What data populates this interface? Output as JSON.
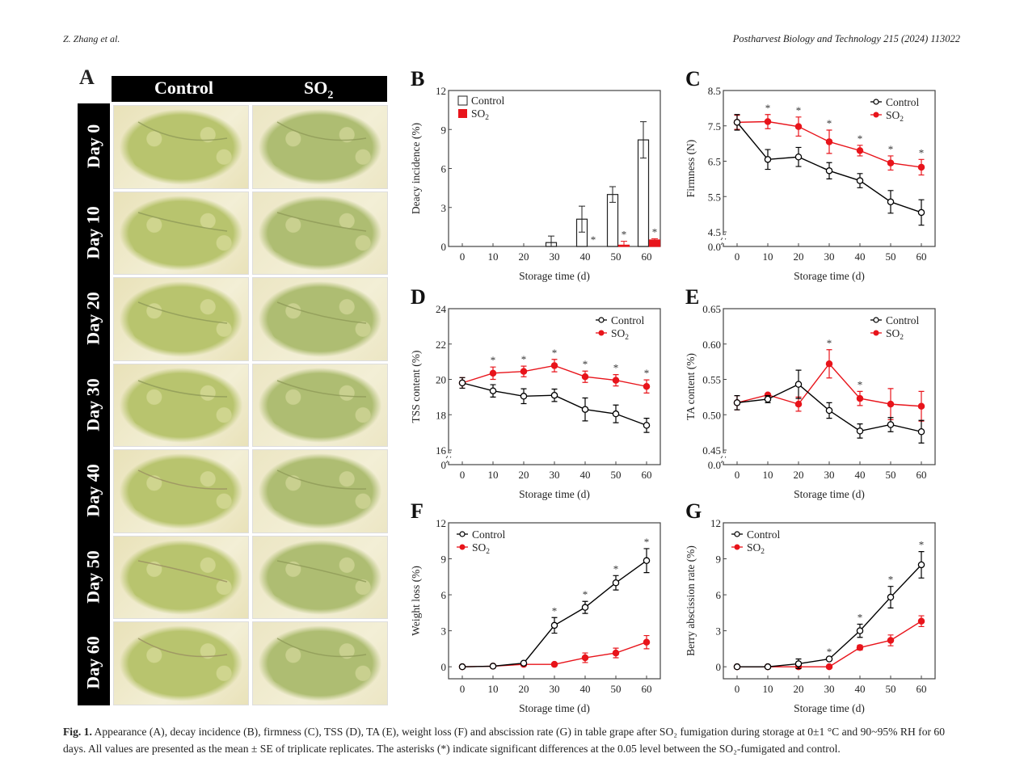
{
  "header": {
    "authors": "Z. Zhang et al.",
    "journal": "Postharvest Biology and Technology 215 (2024) 113022"
  },
  "panelA": {
    "letter": "A",
    "columns": [
      "Control",
      "SO2"
    ],
    "rows": [
      "Day 0",
      "Day 10",
      "Day 20",
      "Day 30",
      "Day 40",
      "Day 50",
      "Day 60"
    ],
    "photo_description": "Photographs of table grape clusters in trays"
  },
  "caption": {
    "label": "Fig. 1.",
    "text": "Appearance (A), decay incidence (B), firmness (C), TSS (D), TA (E), weight loss (F) and abscission rate (G) in table grape after SO₂ fumigation during storage at 0±1 °C and 90~95% RH for 60 days. All values are presented as the mean ± SE of triplicate replicates. The asterisks (*) indicate significant differences at the 0.05 level between the SO₂-fumigated and control."
  },
  "colors": {
    "control": "#000000",
    "so2": "#e8141b"
  },
  "chart_data": [
    {
      "id": "B",
      "type": "bar",
      "letter": "B",
      "title": "",
      "xlabel": "Storage time (d)",
      "ylabel": "Deacy incidence (%)",
      "categories": [
        0,
        10,
        20,
        30,
        40,
        50,
        60
      ],
      "ylim": [
        0,
        12
      ],
      "yticks": [
        0,
        3,
        6,
        9,
        12
      ],
      "legend": "top-left",
      "series": [
        {
          "name": "Control",
          "values": [
            0,
            0,
            0,
            0.3,
            2.1,
            4.0,
            8.2
          ],
          "err": [
            0,
            0,
            0,
            0.5,
            1.0,
            0.6,
            1.4
          ]
        },
        {
          "name": "SO2",
          "values": [
            0,
            0,
            0,
            0,
            0,
            0.1,
            0.5
          ],
          "err": [
            0,
            0,
            0,
            0,
            0,
            0.3,
            0.1
          ]
        }
      ],
      "significant": [
        40,
        50,
        60
      ]
    },
    {
      "id": "C",
      "type": "line",
      "letter": "C",
      "xlabel": "Storage time (d)",
      "ylabel": "Firmness (N)",
      "x": [
        0,
        10,
        20,
        30,
        40,
        50,
        60
      ],
      "ylim": [
        4.5,
        8.5
      ],
      "yticks": [
        "4.5",
        "5.5",
        "6.5",
        "7.5",
        "8.5"
      ],
      "axis_break": "0.0",
      "legend": "top-right",
      "series": [
        {
          "name": "Control",
          "values": [
            7.6,
            6.55,
            6.62,
            6.23,
            5.95,
            5.35,
            5.05
          ],
          "err": [
            0.22,
            0.28,
            0.27,
            0.23,
            0.2,
            0.32,
            0.36
          ]
        },
        {
          "name": "SO2",
          "values": [
            7.6,
            7.62,
            7.48,
            7.05,
            6.8,
            6.45,
            6.33
          ],
          "err": [
            0.2,
            0.2,
            0.27,
            0.33,
            0.15,
            0.2,
            0.22
          ]
        }
      ],
      "significant": [
        10,
        20,
        30,
        40,
        50,
        60
      ]
    },
    {
      "id": "D",
      "type": "line",
      "letter": "D",
      "xlabel": "Storage time (d)",
      "ylabel": "TSS content (%)",
      "x": [
        0,
        10,
        20,
        30,
        40,
        50,
        60
      ],
      "ylim": [
        16,
        24
      ],
      "yticks": [
        "16",
        "18",
        "20",
        "22",
        "24"
      ],
      "axis_break": "0",
      "legend": "top-right",
      "series": [
        {
          "name": "Control",
          "values": [
            19.8,
            19.35,
            19.05,
            19.1,
            18.3,
            18.05,
            17.4
          ],
          "err": [
            0.3,
            0.35,
            0.42,
            0.35,
            0.65,
            0.5,
            0.4
          ]
        },
        {
          "name": "SO2",
          "values": [
            19.8,
            20.35,
            20.45,
            20.78,
            20.15,
            19.95,
            19.6
          ],
          "err": [
            0.3,
            0.35,
            0.3,
            0.35,
            0.32,
            0.32,
            0.37
          ]
        }
      ],
      "significant": [
        10,
        20,
        30,
        40,
        50,
        60
      ]
    },
    {
      "id": "E",
      "type": "line",
      "letter": "E",
      "xlabel": "Storage time (d)",
      "ylabel": "TA content (%)",
      "x": [
        0,
        10,
        20,
        30,
        40,
        50,
        60
      ],
      "ylim": [
        0.45,
        0.65
      ],
      "yticks": [
        "0.45",
        "0.50",
        "0.55",
        "0.60",
        "0.65"
      ],
      "axis_break": "0.0",
      "legend": "top-right",
      "series": [
        {
          "name": "Control",
          "values": [
            0.517,
            0.522,
            0.543,
            0.506,
            0.477,
            0.486,
            0.476
          ],
          "err": [
            0.01,
            0.005,
            0.02,
            0.011,
            0.01,
            0.01,
            0.016
          ]
        },
        {
          "name": "SO2",
          "values": [
            0.517,
            0.528,
            0.515,
            0.572,
            0.523,
            0.515,
            0.512
          ],
          "err": [
            0.01,
            0.002,
            0.01,
            0.02,
            0.01,
            0.022,
            0.021
          ]
        }
      ],
      "significant": [
        30,
        40
      ]
    },
    {
      "id": "F",
      "type": "line",
      "letter": "F",
      "xlabel": "Storage time (d)",
      "ylabel": "Weight loss (%)",
      "x": [
        0,
        10,
        20,
        30,
        40,
        50,
        60
      ],
      "ylim": [
        -1,
        12
      ],
      "yticks": [
        "0",
        "3",
        "6",
        "9",
        "12"
      ],
      "legend": "top-left",
      "series": [
        {
          "name": "Control",
          "values": [
            0,
            0.05,
            0.3,
            3.45,
            4.95,
            7.0,
            8.85
          ],
          "err": [
            0,
            0,
            0.05,
            0.65,
            0.5,
            0.6,
            1.0
          ]
        },
        {
          "name": "SO2",
          "values": [
            0,
            0.05,
            0.2,
            0.2,
            0.75,
            1.15,
            2.05
          ],
          "err": [
            0,
            0,
            0,
            0.05,
            0.4,
            0.4,
            0.55
          ]
        }
      ],
      "significant": [
        30,
        40,
        50,
        60
      ]
    },
    {
      "id": "G",
      "type": "line",
      "letter": "G",
      "xlabel": "Storage time (d)",
      "ylabel": "Berry abscission rate (%)",
      "x": [
        0,
        10,
        20,
        30,
        40,
        50,
        60
      ],
      "ylim": [
        -1,
        12
      ],
      "yticks": [
        "0",
        "3",
        "6",
        "9",
        "12"
      ],
      "legend": "top-left",
      "series": [
        {
          "name": "Control",
          "values": [
            0,
            0,
            0.25,
            0.65,
            3.0,
            5.8,
            8.5
          ],
          "err": [
            0,
            0,
            0.4,
            0.05,
            0.55,
            0.9,
            1.1
          ]
        },
        {
          "name": "SO2",
          "values": [
            0,
            0,
            0,
            0,
            1.6,
            2.2,
            3.8
          ],
          "err": [
            0,
            0,
            0.1,
            0,
            0.2,
            0.45,
            0.45
          ]
        }
      ],
      "significant": [
        30,
        40,
        50,
        60
      ]
    }
  ]
}
